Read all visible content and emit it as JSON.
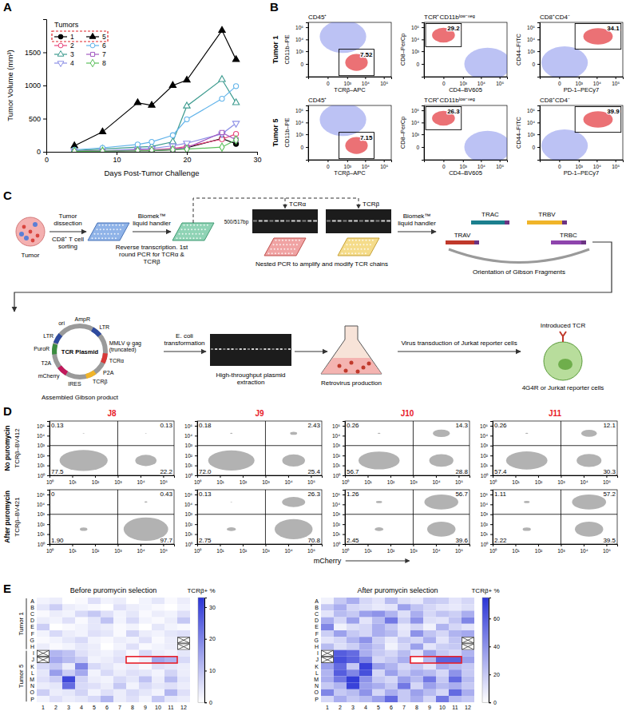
{
  "chart_data": [
    {
      "panel": "A",
      "type": "line",
      "x_label": "Days Post-Tumor Challenge",
      "y_label": "Tumor Volume (mm³)",
      "legend_title": "Tumors",
      "legend": "upper left",
      "xlim": [
        0,
        30
      ],
      "xticks": [
        0,
        10,
        20,
        30
      ],
      "ylim": [
        0,
        2000
      ],
      "yticks": [
        0,
        500,
        1000,
        1500
      ],
      "x": [
        4,
        8,
        13,
        15,
        18,
        20,
        25,
        27
      ],
      "series": [
        {
          "name": "1",
          "color": "#000000",
          "marker": "circle",
          "values": [
            5,
            10,
            20,
            15,
            30,
            60,
            200,
            120
          ]
        },
        {
          "name": "2",
          "color": "#e8457c",
          "marker": "open-circle",
          "values": [
            10,
            15,
            25,
            30,
            50,
            80,
            190,
            270
          ]
        },
        {
          "name": "3",
          "color": "#3d9b8f",
          "marker": "open-triangle",
          "values": [
            20,
            40,
            70,
            80,
            150,
            690,
            1090,
            740
          ]
        },
        {
          "name": "4",
          "color": "#8c8fe6",
          "marker": "open-triangle-down",
          "values": [
            5,
            15,
            40,
            50,
            90,
            130,
            270,
            430
          ]
        },
        {
          "name": "5",
          "color": "#000000",
          "marker": "triangle",
          "values": [
            90,
            300,
            740,
            700,
            1000,
            1080,
            1830,
            1390
          ]
        },
        {
          "name": "6",
          "color": "#62b4ea",
          "marker": "open-circle",
          "values": [
            30,
            60,
            110,
            150,
            250,
            490,
            800,
            990
          ]
        },
        {
          "name": "7",
          "color": "#a35bc2",
          "marker": "open-square",
          "values": [
            5,
            10,
            20,
            25,
            40,
            60,
            290,
            180
          ]
        },
        {
          "name": "8",
          "color": "#5cbf5c",
          "marker": "open-diamond",
          "values": [
            5,
            10,
            15,
            20,
            30,
            40,
            70,
            180
          ]
        }
      ]
    },
    {
      "panel": "B",
      "type": "flow_gates",
      "row_labels": [
        "Tumor 1",
        "Tumor 5"
      ],
      "xlim": [
        -1000,
        250000
      ],
      "ylim": [
        -1000,
        250000
      ],
      "xticks": [
        0,
        {
          "value": 1000,
          "label": "10³"
        },
        {
          "value": 10000,
          "label": "10⁴"
        },
        {
          "value": 100000,
          "label": "10⁵"
        }
      ],
      "yticks": [
        0,
        {
          "value": 1000,
          "label": "10³"
        },
        {
          "value": 10000,
          "label": "10⁴"
        },
        {
          "value": 100000,
          "label": "10⁵"
        }
      ],
      "plots": [
        {
          "title": "CD45⁺",
          "x_label": "TCRβ–APC",
          "y_label": "CD11b–PE",
          "gate": {
            "x": [
              300,
              30000
            ],
            "y": [
              -800,
              1500
            ]
          },
          "percent": [
            7.52,
            7.15
          ]
        },
        {
          "title": "TCR⁺CD11bˡᵒʷ⁻ⁿᵉᵍ",
          "x_label": "CD4–BV605",
          "y_label": "CD8–PerCp",
          "gate": {
            "x": [
              -800,
              800
            ],
            "y": [
              2500,
              200000
            ]
          },
          "percent": [
            29.2,
            26.3
          ]
        },
        {
          "title": "CD8⁺CD4⁻",
          "x_label": "PD-1–PECy7",
          "y_label": "CD44–FITC",
          "gate": {
            "x": [
              600,
              200000
            ],
            "y": [
              1500,
              200000
            ]
          },
          "percent": [
            34.1,
            39.9
          ]
        }
      ]
    },
    {
      "panel": "D",
      "type": "flow_quadrants",
      "log": true,
      "color": "#e8202a",
      "x_label": "mCherry",
      "xlim": [
        1,
        300000
      ],
      "ylim": [
        1,
        300000
      ],
      "xticks": [
        {
          "value": 1,
          "label": "10⁰"
        },
        {
          "value": 10,
          "label": "10¹"
        },
        {
          "value": 100,
          "label": "10²"
        },
        {
          "value": 1000,
          "label": "10³"
        },
        {
          "value": 10000,
          "label": "10⁴"
        },
        {
          "value": 100000,
          "label": "10⁵"
        }
      ],
      "yticks": [
        {
          "value": 1,
          "label": "10⁰"
        },
        {
          "value": 10,
          "label": "10¹"
        },
        {
          "value": 100,
          "label": "10²"
        },
        {
          "value": 1000,
          "label": "10³"
        },
        {
          "value": 10000,
          "label": "10⁴"
        },
        {
          "value": 100000,
          "label": "10⁵"
        }
      ],
      "split": {
        "x": 1000,
        "y": 1000
      },
      "columns": [
        "J8",
        "J9",
        "J10",
        "J11"
      ],
      "rows": [
        {
          "label": "No puromycin",
          "y_label": "TCRβ–BV412"
        },
        {
          "label": "After puromycin",
          "y_label": "TCRβ–BV421"
        }
      ],
      "quadrants": [
        [
          [
            0.13,
            0.13,
            77.5,
            22.2
          ],
          [
            0.18,
            2.43,
            72.0,
            25.4
          ],
          [
            0.26,
            14.3,
            56.7,
            28.8
          ],
          [
            0.26,
            12.1,
            57.4,
            30.3
          ]
        ],
        [
          [
            0,
            0.43,
            1.9,
            97.7
          ],
          [
            0.13,
            26.3,
            2.75,
            70.8
          ],
          [
            1.26,
            56.7,
            2.45,
            39.6
          ],
          [
            1.11,
            57.2,
            2.22,
            39.5
          ]
        ]
      ],
      "value_labels": [
        [
          [
            "0.13",
            "0.13",
            "77.5",
            "22.2"
          ],
          [
            "0.18",
            "2.43",
            "72.0",
            "25.4"
          ],
          [
            "0.26",
            "14.3",
            "56.7",
            "28.8"
          ],
          [
            "0.26",
            "12.1",
            "57.4",
            "30.3"
          ]
        ],
        [
          [
            "0",
            "0.43",
            "1.90",
            "97.7"
          ],
          [
            "0.13",
            "26.3",
            "2.75",
            "70.8"
          ],
          [
            "1.26",
            "56.7",
            "2.45",
            "39.6"
          ],
          [
            "1.11",
            "57.2",
            "2.22",
            "39.5"
          ]
        ]
      ]
    },
    {
      "panel": "E",
      "type": "heatmap",
      "color": "#2b35d6",
      "rows": [
        "A",
        "B",
        "C",
        "D",
        "E",
        "F",
        "G",
        "H",
        "I",
        "J",
        "K",
        "L",
        "M",
        "N",
        "O",
        "P"
      ],
      "columns": [
        1,
        2,
        3,
        4,
        5,
        6,
        7,
        8,
        9,
        10,
        11,
        12
      ],
      "groups": [
        {
          "label": "Tumor 1",
          "count": 8
        },
        {
          "label": "Tumor 5",
          "count": 8
        }
      ],
      "panels": [
        {
          "title": "Before puromycin selection",
          "colorbar_label": "TCRβ+ %",
          "clim": [
            0,
            33
          ],
          "cticks": [
            0,
            10,
            20,
            30
          ],
          "cells": [
            [
              2,
              3,
              0,
              1,
              5,
              2,
              3,
              0,
              2,
              4,
              1,
              3
            ],
            [
              4,
              8,
              3,
              2,
              1,
              0,
              5,
              3,
              2,
              1,
              0,
              2
            ],
            [
              1,
              3,
              2,
              6,
              9,
              5,
              2,
              4,
              1,
              3,
              2,
              5
            ],
            [
              3,
              2,
              5,
              1,
              4,
              10,
              2,
              6,
              2,
              1,
              3,
              9
            ],
            [
              8,
              0,
              1,
              2,
              4,
              3,
              1,
              2,
              0,
              4,
              2,
              1
            ],
            [
              2,
              6,
              3,
              2,
              5,
              4,
              1,
              7,
              3,
              2,
              4,
              5
            ],
            [
              1,
              2,
              4,
              6,
              2,
              1,
              3,
              2,
              5,
              1,
              3,
              null
            ],
            [
              3,
              1,
              2,
              4,
              3,
              0,
              2,
              5,
              1,
              2,
              3,
              null
            ],
            [
              null,
              12,
              10,
              5,
              3,
              2,
              4,
              1,
              6,
              3,
              2,
              4
            ],
            [
              null,
              14,
              11,
              8,
              2,
              3,
              5,
              0.3,
              2.6,
              14.6,
              12.4,
              6
            ],
            [
              6,
              9,
              3,
              20,
              6,
              4,
              2,
              3,
              1,
              5,
              4,
              3
            ],
            [
              4,
              16,
              8,
              14,
              2,
              6,
              3,
              5,
              4,
              2,
              7,
              3
            ],
            [
              5,
              8,
              30,
              7,
              3,
              2,
              6,
              4,
              10,
              3,
              11,
              4
            ],
            [
              3,
              4,
              24,
              6,
              5,
              3,
              9,
              2,
              6,
              4,
              5,
              3
            ],
            [
              8,
              3,
              4,
              7,
              2,
              5,
              3,
              6,
              4,
              2,
              12,
              5
            ],
            [
              2,
              5,
              3,
              4,
              6,
              12,
              3,
              5,
              2,
              9,
              4,
              3
            ]
          ]
        },
        {
          "title": "After puromycin selection",
          "colorbar_label": "TCRβ+ %",
          "clim": [
            0,
            75
          ],
          "cticks": [
            0,
            20,
            40,
            60
          ],
          "cells": [
            [
              5,
              20,
              30,
              15,
              10,
              25,
              12,
              8,
              20,
              18,
              10,
              15
            ],
            [
              20,
              30,
              15,
              12,
              8,
              10,
              35,
              22,
              15,
              10,
              8,
              12
            ],
            [
              10,
              25,
              20,
              35,
              40,
              28,
              12,
              30,
              15,
              22,
              18,
              30
            ],
            [
              30,
              15,
              35,
              10,
              25,
              50,
              18,
              40,
              12,
              10,
              22,
              45
            ],
            [
              45,
              5,
              12,
              15,
              30,
              20,
              8,
              15,
              5,
              28,
              15,
              10
            ],
            [
              18,
              35,
              20,
              15,
              30,
              25,
              10,
              40,
              22,
              15,
              28,
              32
            ],
            [
              10,
              15,
              28,
              40,
              18,
              8,
              20,
              15,
              30,
              10,
              22,
              null
            ],
            [
              25,
              12,
              18,
              30,
              22,
              5,
              15,
              35,
              10,
              18,
              20,
              null
            ],
            [
              null,
              60,
              55,
              30,
              20,
              15,
              25,
              10,
              35,
              20,
              15,
              28
            ],
            [
              null,
              65,
              58,
              45,
              15,
              20,
              30,
              0.4,
              26.4,
              58,
              58.3,
              35
            ],
            [
              35,
              55,
              20,
              70,
              35,
              28,
              15,
              20,
              10,
              30,
              25,
              20
            ],
            [
              28,
              60,
              45,
              65,
              15,
              35,
              20,
              30,
              25,
              15,
              40,
              20
            ],
            [
              30,
              50,
              72,
              40,
              20,
              15,
              35,
              25,
              50,
              20,
              55,
              25
            ],
            [
              20,
              28,
              70,
              35,
              30,
              20,
              50,
              15,
              35,
              25,
              30,
              20
            ],
            [
              45,
              20,
              25,
              40,
              15,
              30,
              20,
              35,
              25,
              15,
              55,
              30
            ],
            [
              15,
              30,
              20,
              25,
              35,
              55,
              20,
              30,
              15,
              50,
              25,
              20
            ]
          ]
        }
      ]
    }
  ],
  "diagram": {
    "panel": "C",
    "tumor": "Tumor",
    "step1_top": "Tumor dissection",
    "step1_bottom": "CD8⁺ T cell sorting",
    "step2_top": "Biomek™ liquid handler",
    "step2_bottom": "Reverse transcription. 1st round PCR for TCRα & TCRβ",
    "ladder": "500/517bp",
    "gels": [
      "TCRα",
      "TCRβ"
    ],
    "step3_bottom": "Nested PCR to amplify and modify TCR chains",
    "step4_top": "Biomek™ liquid handler",
    "fragments": [
      "TRAC",
      "TRBV",
      "TRAV",
      "TRBC"
    ],
    "step4_bottom": "Orientation of Gibson Fragments",
    "plasmid_name": "TCR Plasmid",
    "plasmid_features": [
      "ori",
      "AmpR",
      "LTR",
      "MMLV ψ gag (truncated)",
      "TCRα",
      "P2A",
      "TCRβ",
      "IRES",
      "mCherry",
      "T2A",
      "PuroR",
      "LTR"
    ],
    "plasmid_caption": "Assembled Gibson product",
    "step5_top": "E. coli transformation",
    "step5_bottom": "High-throughput plasmid extraction",
    "step6_bottom": "Retrovirus production",
    "step7_top": "Virus transduction of Jurkat reporter cells",
    "cell_top": "Introduced TCR",
    "cell_bottom": "4G4R or Jurkat reporter cells"
  }
}
